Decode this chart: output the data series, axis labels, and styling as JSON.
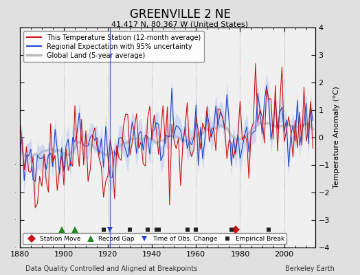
{
  "title": "GREENVILLE 2 NE",
  "subtitle": "41.417 N, 80.367 W (United States)",
  "xlabel_bottom": "Data Quality Controlled and Aligned at Breakpoints",
  "xlabel_right": "Berkeley Earth",
  "ylabel": "Temperature Anomaly (°C)",
  "xlim": [
    1880,
    2014
  ],
  "ylim": [
    -4,
    4
  ],
  "yticks": [
    -4,
    -3,
    -2,
    -1,
    0,
    1,
    2,
    3,
    4
  ],
  "xticks": [
    1880,
    1900,
    1920,
    1940,
    1960,
    1980,
    2000
  ],
  "background_color": "#e0e0e0",
  "plot_bg_color": "#f0f0f0",
  "station_moves": [
    1978
  ],
  "record_gaps": [
    1899,
    1905
  ],
  "obs_changes": [
    1921
  ],
  "emp_breaks": [
    1918,
    1930,
    1938,
    1942,
    1943,
    1956,
    1960,
    1976,
    1993
  ],
  "seed": 42
}
